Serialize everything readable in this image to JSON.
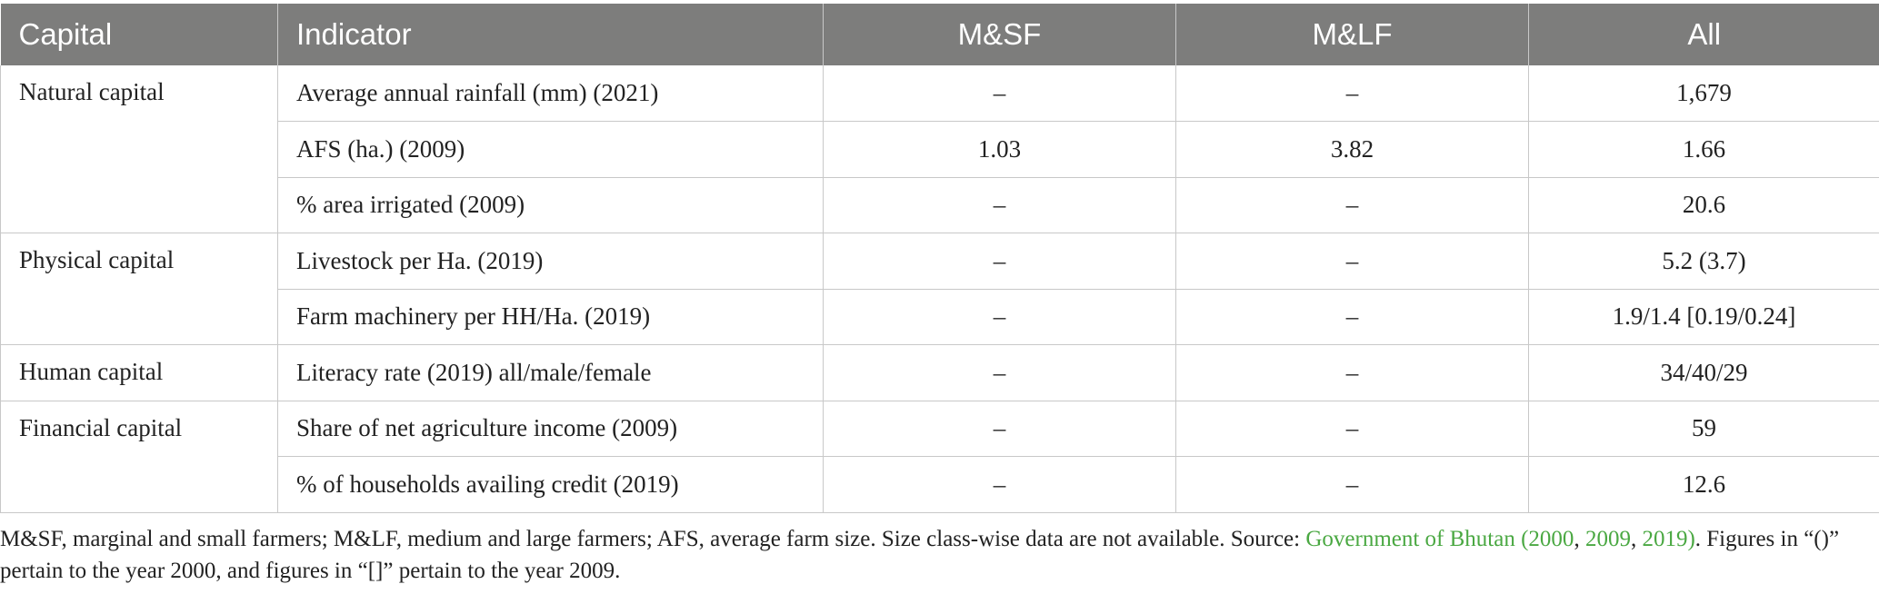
{
  "table": {
    "headers": [
      "Capital",
      "Indicator",
      "M&SF",
      "M&LF",
      "All"
    ],
    "groups": [
      {
        "capital": "Natural capital",
        "rows": [
          {
            "indicator": "Average annual rainfall (mm) (2021)",
            "msf": "–",
            "mlf": "–",
            "all": "1,679"
          },
          {
            "indicator": "AFS (ha.) (2009)",
            "msf": "1.03",
            "mlf": "3.82",
            "all": "1.66"
          },
          {
            "indicator": "% area irrigated (2009)",
            "msf": "–",
            "mlf": "–",
            "all": "20.6"
          }
        ]
      },
      {
        "capital": "Physical capital",
        "rows": [
          {
            "indicator": "Livestock per Ha. (2019)",
            "msf": "–",
            "mlf": "–",
            "all": "5.2 (3.7)"
          },
          {
            "indicator": "Farm machinery per HH/Ha. (2019)",
            "msf": "–",
            "mlf": "–",
            "all": "1.9/1.4 [0.19/0.24]"
          }
        ]
      },
      {
        "capital": "Human capital",
        "rows": [
          {
            "indicator": "Literacy rate (2019) all/male/female",
            "msf": "–",
            "mlf": "–",
            "all": "34/40/29"
          }
        ]
      },
      {
        "capital": "Financial capital",
        "rows": [
          {
            "indicator": "Share of net agriculture income (2009)",
            "msf": "–",
            "mlf": "–",
            "all": "59"
          },
          {
            "indicator": "% of households availing credit (2019)",
            "msf": "–",
            "mlf": "–",
            "all": "12.6"
          }
        ]
      }
    ]
  },
  "footnote": {
    "text_before": "M&SF, marginal and small farmers; M&LF, medium and large farmers; AFS, average farm size. Size class-wise data are not available. Source: ",
    "link_main": "Government of Bhutan (2000",
    "sep1": ", ",
    "link_2009": "2009",
    "sep2": ", ",
    "link_2019": "2019)",
    "text_after": ". Figures in “()” pertain to the year 2000, and figures in “[]” pertain to the year 2009."
  },
  "colors": {
    "header_bg": "#7d7d7c",
    "link": "#4aa842",
    "grid": "#c8c8c8"
  }
}
